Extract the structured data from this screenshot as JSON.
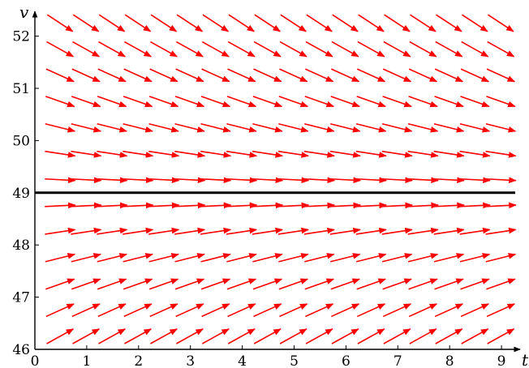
{
  "chart_data": {
    "type": "vector-field",
    "xlabel": "t",
    "ylabel": "v",
    "xlim": [
      0,
      9.25
    ],
    "ylim": [
      46,
      52.5
    ],
    "x_ticks": [
      "0",
      "1",
      "2",
      "3",
      "4",
      "5",
      "6",
      "7",
      "8",
      "9"
    ],
    "y_ticks": [
      "46",
      "47",
      "48",
      "49",
      "50",
      "51",
      "52"
    ],
    "equilibrium_v": 49,
    "arrow_t": [
      0.25,
      0.75,
      1.25,
      1.75,
      2.25,
      2.75,
      3.25,
      3.75,
      4.25,
      4.75,
      5.25,
      5.75,
      6.25,
      6.75,
      7.25,
      7.75,
      8.25,
      8.75
    ],
    "arrow_v": [
      46.25,
      46.75,
      47.25,
      47.75,
      48.25,
      48.75,
      49.25,
      49.75,
      50.25,
      50.75,
      51.25,
      51.75,
      52.25
    ],
    "slope_rule": "dv/dt = k(49 - v), k = 0.2",
    "k": 0.2,
    "arrow_color": "#ff0000",
    "line_color": "#000000"
  }
}
